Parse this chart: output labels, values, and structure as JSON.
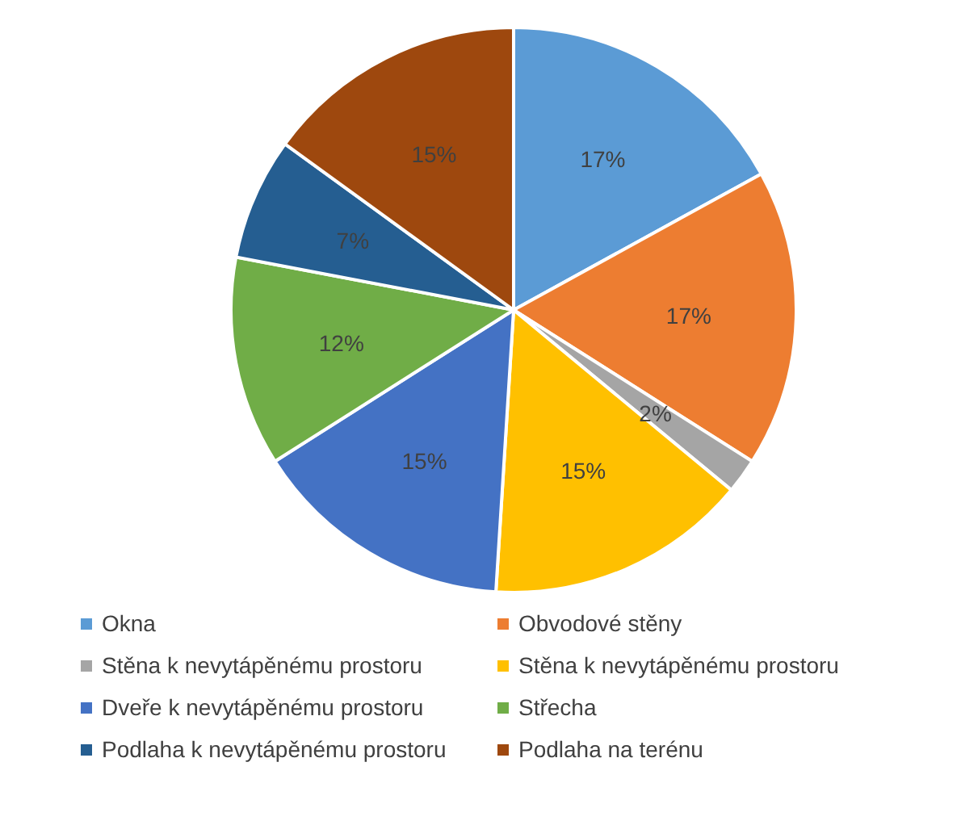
{
  "chart_data": {
    "type": "pie",
    "categories": [
      "Okna",
      "Obvodové stěny",
      "Stěna k nevytápěnému prostoru",
      "Stěna k nevytápěnému prostoru",
      "Dveře k nevytápěnému prostoru",
      "Střecha",
      "Podlaha k nevytápěnému prostoru",
      "Podlaha na terénu"
    ],
    "values": [
      17,
      17,
      2,
      15,
      15,
      12,
      7,
      15
    ],
    "colors": [
      "#5b9bd5",
      "#ed7d31",
      "#a5a5a5",
      "#ffc000",
      "#4472c4",
      "#70ad47",
      "#255e91",
      "#9e480e"
    ],
    "value_labels": [
      "17%",
      "17%",
      "2%",
      "15%",
      "15%",
      "12%",
      "7%",
      "15%"
    ],
    "legend": "bottom"
  }
}
